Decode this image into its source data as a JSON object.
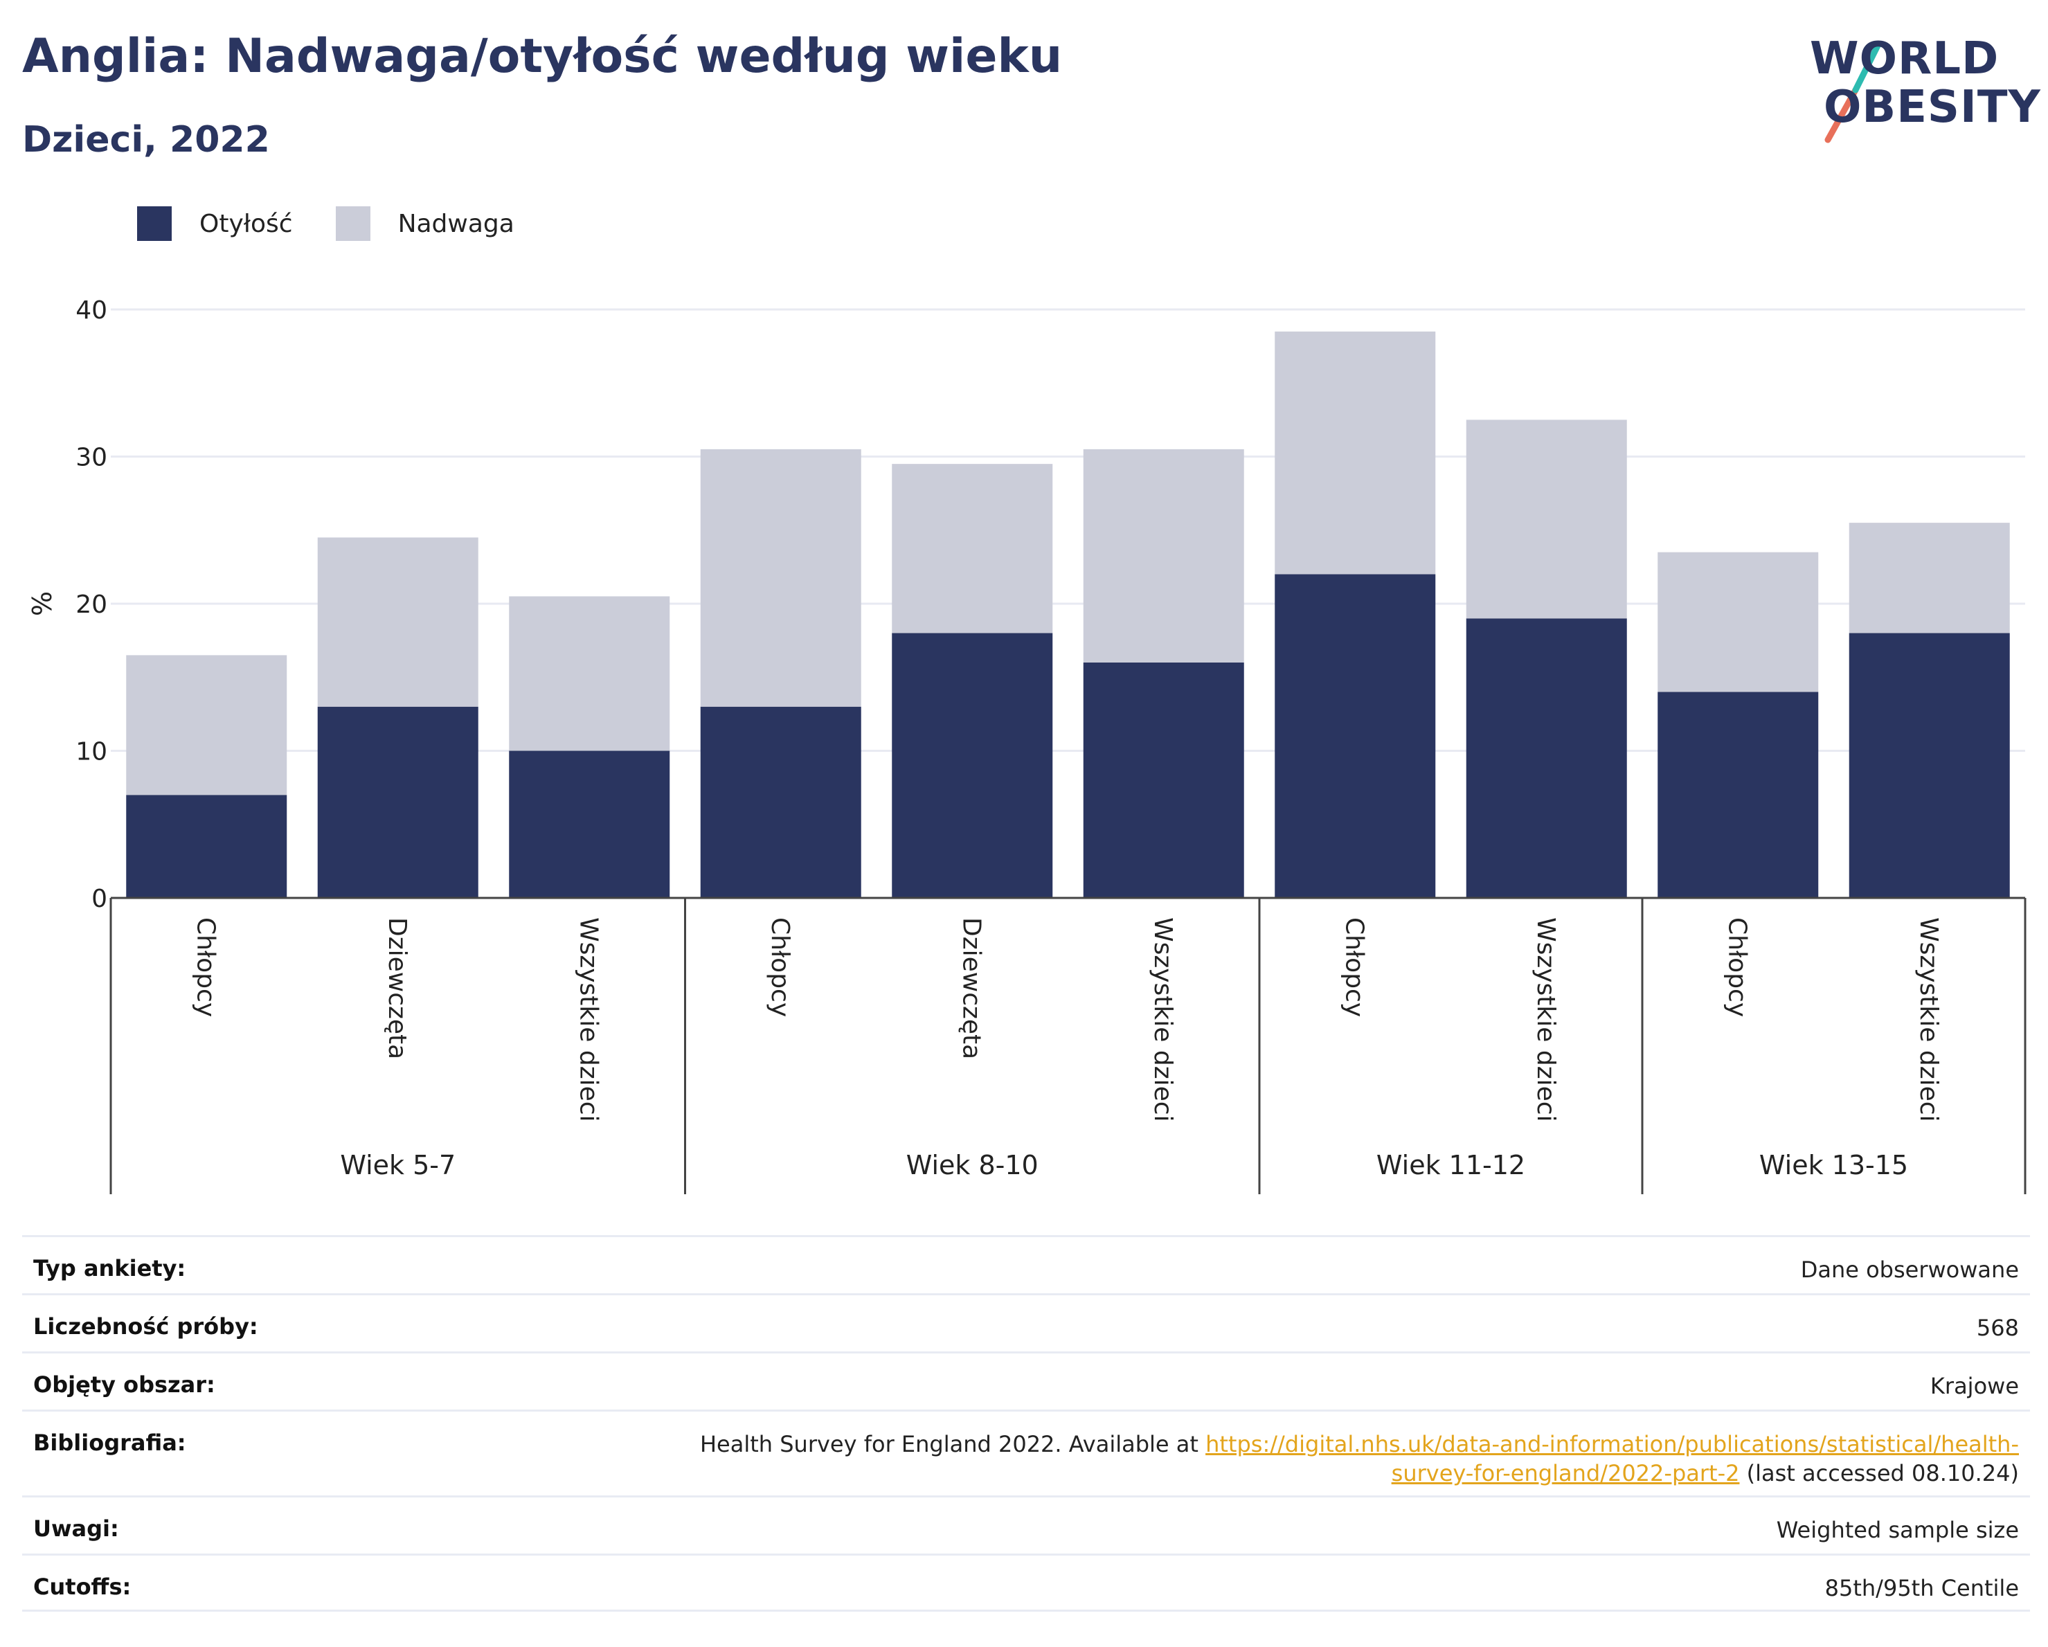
{
  "header": {
    "title": "Anglia: Nadwaga/otyłość według wieku",
    "subtitle": "Dzieci, 2022"
  },
  "logo": {
    "line1": "WORLD",
    "line2": "OBESITY"
  },
  "colors": {
    "obesity": "#2a3560",
    "overweight": "#cbcdd9",
    "axis": "#444444",
    "grid": "#e8eaf2",
    "link": "#e3a41c",
    "accent_teal": "#2dbbb0",
    "accent_coral": "#e8705a"
  },
  "chart_data": {
    "type": "bar",
    "stacked": true,
    "ylabel": "%",
    "ylim": [
      0,
      40
    ],
    "yticks": [
      0,
      10,
      20,
      30,
      40
    ],
    "grid": true,
    "legend_position": "top-left",
    "groups": [
      {
        "label": "Wiek 5-7",
        "categories": [
          "Chłopcy",
          "Dziewczęta",
          "Wszystkie dzieci"
        ]
      },
      {
        "label": "Wiek 8-10",
        "categories": [
          "Chłopcy",
          "Dziewczęta",
          "Wszystkie dzieci"
        ]
      },
      {
        "label": "Wiek 11-12",
        "categories": [
          "Chłopcy",
          "Wszystkie dzieci"
        ]
      },
      {
        "label": "Wiek 13-15",
        "categories": [
          "Chłopcy",
          "Wszystkie dzieci"
        ]
      }
    ],
    "series": [
      {
        "name": "Otyłość",
        "values": [
          7,
          13,
          10,
          13,
          18,
          16,
          22,
          19,
          14,
          18
        ]
      },
      {
        "name": "Nadwaga",
        "values": [
          9.5,
          11.5,
          10.5,
          17.5,
          11.5,
          14.5,
          16.5,
          13.5,
          9.5,
          7.5
        ]
      }
    ]
  },
  "meta": [
    {
      "key": "Typ ankiety:",
      "value": "Dane obserwowane"
    },
    {
      "key": "Liczebność próby:",
      "value": "568"
    },
    {
      "key": "Objęty obszar:",
      "value": "Krajowe"
    },
    {
      "key": "Bibliografia:",
      "value_prefix": "Health Survey for England 2022. Available at ",
      "link": "https://digital.nhs.uk/data-and-information/publications/statistical/health-survey-for-england/2022-part-2",
      "value_suffix": " (last accessed 08.10.24)"
    },
    {
      "key": "Uwagi:",
      "value": "Weighted sample size"
    },
    {
      "key": "Cutoffs:",
      "value": "85th/95th Centile"
    }
  ]
}
